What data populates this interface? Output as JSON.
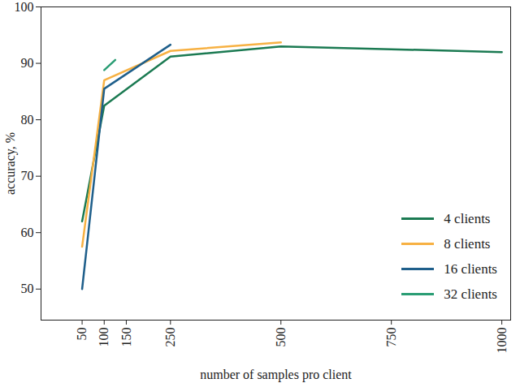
{
  "chart_data": {
    "type": "line",
    "x_label": "number of samples pro client",
    "y_label": "accuracy, %",
    "xlim": [
      -43,
      1020
    ],
    "ylim": [
      44.5,
      100
    ],
    "xticks": [
      50,
      100,
      150,
      250,
      500,
      750,
      1000
    ],
    "yticks": [
      50,
      60,
      70,
      80,
      90,
      100
    ],
    "grid": false,
    "legend": "lower right",
    "series": [
      {
        "name": "4 clients",
        "color": "#1b7a52",
        "x": [
          50,
          100,
          250,
          500,
          1000
        ],
        "values": [
          62,
          82.5,
          91.2,
          93,
          92
        ]
      },
      {
        "name": "8 clients",
        "color": "#f7b143",
        "x": [
          50,
          100,
          250,
          500
        ],
        "values": [
          57.5,
          87,
          92.2,
          93.7
        ]
      },
      {
        "name": "16 clients",
        "color": "#1f5f8b",
        "x": [
          50,
          100,
          250
        ],
        "values": [
          50,
          85.5,
          93.3
        ]
      },
      {
        "name": "32 clients",
        "color": "#2a9d74",
        "x": [
          100,
          125
        ],
        "values": [
          88.8,
          90.6
        ]
      }
    ]
  }
}
